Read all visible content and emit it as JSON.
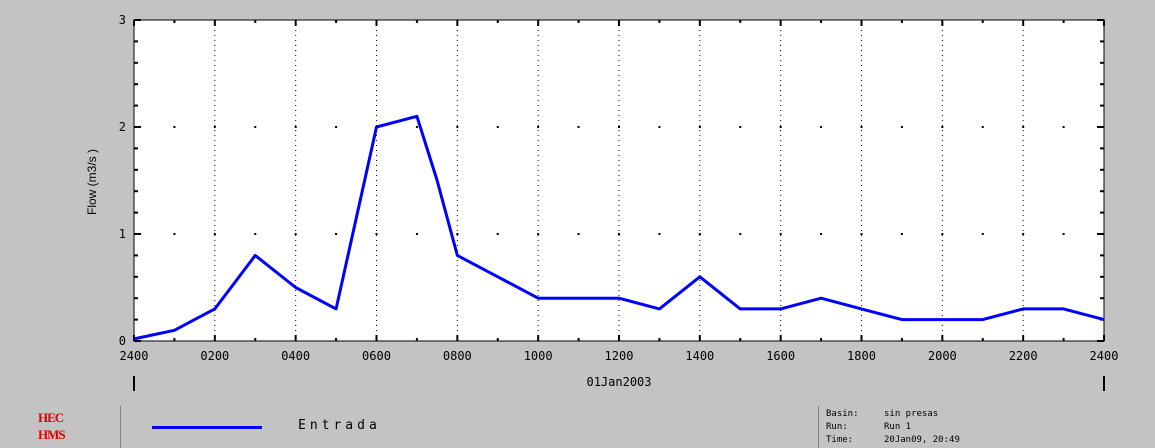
{
  "colors": {
    "background": "#c3c3c3",
    "plot_area": "#ffffff",
    "series_line": "#0000ff",
    "logo": "#e00000"
  },
  "chart_data": {
    "type": "line",
    "title": "",
    "xlabel": "01Jan2003",
    "ylabel": "Flow (m3/s   )",
    "ylim": [
      0,
      3
    ],
    "yticks": [
      "0",
      "1",
      "2",
      "3"
    ],
    "xticks": [
      "2400",
      "0200",
      "0400",
      "0600",
      "0800",
      "1000",
      "1200",
      "1400",
      "1600",
      "1800",
      "2000",
      "2200",
      "2400"
    ],
    "x_units": "hours",
    "grid": "dotted vertical lines, dot markers",
    "legend": "bottom",
    "series": [
      {
        "name": "Entrada",
        "color": "#0000ff",
        "x": [
          0,
          1,
          1.5,
          2,
          3,
          4,
          5,
          6,
          7,
          7.5,
          8,
          9,
          10,
          11,
          12,
          13,
          14,
          15,
          16,
          17,
          18,
          19,
          20,
          21,
          22,
          23,
          24
        ],
        "y": [
          0.02,
          0.1,
          0.2,
          0.3,
          0.8,
          0.5,
          0.3,
          2.0,
          2.1,
          1.5,
          0.8,
          0.6,
          0.4,
          0.4,
          0.4,
          0.3,
          0.6,
          0.3,
          0.3,
          0.4,
          0.3,
          0.2,
          0.2,
          0.2,
          0.3,
          0.3,
          0.2
        ]
      }
    ]
  },
  "legend": {
    "logo_line1": "HEC",
    "logo_line2": "HMS",
    "series_label": "Entrada",
    "info": [
      {
        "key": "Basin:",
        "value": "sin presas"
      },
      {
        "key": "Run:",
        "value": "Run 1"
      },
      {
        "key": "Time:",
        "value": "20Jan09, 20:49"
      }
    ]
  }
}
